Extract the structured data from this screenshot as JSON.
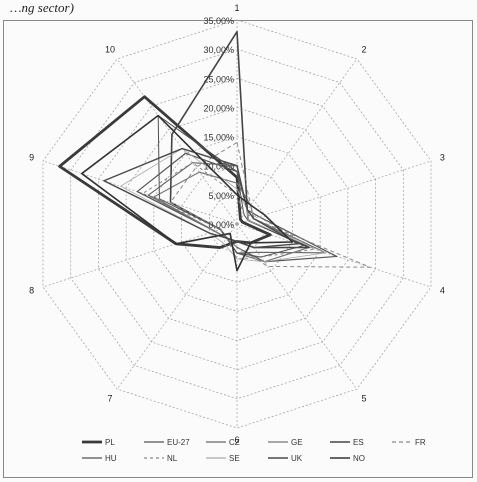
{
  "caption": "…ng sector)",
  "chart_data": {
    "type": "radar",
    "title": "",
    "axes": [
      "1",
      "2",
      "3",
      "4",
      "5",
      "6",
      "7",
      "8",
      "9",
      "10"
    ],
    "ticks": [
      "0,00%",
      "5,00%",
      "10,00%",
      "15,00%",
      "20,00%",
      "25,00%",
      "30,00%",
      "35,00%"
    ],
    "rlim": [
      0,
      35
    ],
    "grid": true,
    "legend_position": "bottom",
    "series": [
      {
        "name": "PL",
        "values": [
          8,
          1,
          1,
          6,
          4,
          3,
          5,
          11,
          32,
          27
        ],
        "color": "#3a3a3a",
        "dash": "",
        "width": 2.8
      },
      {
        "name": "EU-27",
        "values": [
          9,
          3,
          4,
          18,
          8,
          4,
          3,
          4,
          18,
          15
        ],
        "color": "#555555",
        "dash": "",
        "width": 1.2
      },
      {
        "name": "CZ",
        "values": [
          10,
          3,
          3,
          16,
          6,
          5,
          3,
          4,
          16,
          13
        ],
        "color": "#666666",
        "dash": "",
        "width": 1.2
      },
      {
        "name": "GE",
        "values": [
          7,
          4,
          3,
          13,
          8,
          5,
          3,
          4,
          15,
          11
        ],
        "color": "#777777",
        "dash": "",
        "width": 1.2
      },
      {
        "name": "ES",
        "values": [
          33,
          3,
          2,
          13,
          5,
          3,
          3,
          3,
          12,
          19
        ],
        "color": "#444444",
        "dash": "",
        "width": 1.6
      },
      {
        "name": "FR",
        "values": [
          14,
          4,
          3,
          24,
          9,
          4,
          3,
          3,
          12,
          12
        ],
        "color": "#8a8a8a",
        "dash": "4,3",
        "width": 1
      },
      {
        "name": "HU",
        "values": [
          9,
          2,
          2,
          12,
          7,
          5,
          3,
          3,
          14,
          23
        ],
        "color": "#505050",
        "dash": "",
        "width": 1
      },
      {
        "name": "NL",
        "values": [
          5,
          2,
          4,
          14,
          7,
          6,
          3,
          3,
          17,
          13
        ],
        "color": "#888888",
        "dash": "3,3",
        "width": 1
      },
      {
        "name": "SE",
        "values": [
          6,
          3,
          2,
          16,
          8,
          6,
          4,
          5,
          21,
          16
        ],
        "color": "#aaaaaa",
        "dash": "",
        "width": 0.8
      },
      {
        "name": "UK",
        "values": [
          10,
          3,
          3,
          11,
          5,
          3,
          3,
          5,
          24,
          16
        ],
        "color": "#4a4a4a",
        "dash": "",
        "width": 1.4
      },
      {
        "name": "NO",
        "values": [
          5,
          4,
          5,
          10,
          4,
          8,
          2,
          11,
          28,
          23
        ],
        "color": "#333333",
        "dash": "",
        "width": 1.6
      }
    ]
  }
}
